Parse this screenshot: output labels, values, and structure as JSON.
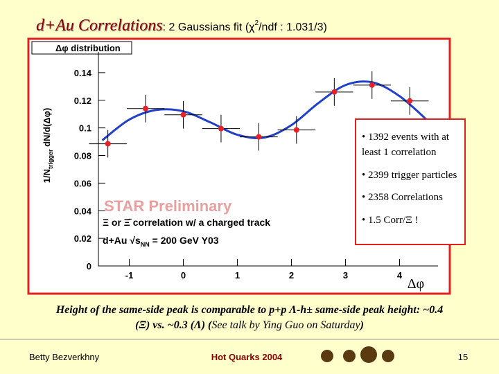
{
  "slide": {
    "title_main": "d+Au   Correlations",
    "title_note": ": 2 Gaussians fit (χ",
    "title_sup": "2",
    "title_end": "/ndf : 1.031/3)",
    "bullets": [
      "• 1392 events with at",
      "least 1 correlation",
      "• 2399 trigger particles",
      "• 2358 Correlations",
      "• 1.5  Corr/Ξ !"
    ],
    "caption_line1": "Height of the same-side peak is comparable to p+p Λ-h± same-side peak height: ~0.4",
    "caption_line2a": "(Ξ) vs. ~0.3 (Λ) (",
    "caption_line2b": "See talk by Ying Guo on Saturday",
    "caption_line2c": ")",
    "footer_author": "Betty Bezverkhny",
    "footer_conf": "Hot Quarks 2004",
    "footer_page": "15"
  },
  "chart_data": {
    "type": "scatter",
    "title": "Δφ distribution",
    "xlabel": "Δφ",
    "ylabel_a": "1/N",
    "ylabel_sub": "trigger",
    "ylabel_b": " dN/d(Δφ)",
    "annotations": [
      "STAR Preliminary",
      "Ξ or Ξ̄ correlation w/ a charged track"
    ],
    "energy_a": "d+Au ",
    "energy_b": "√s",
    "energy_sub": "NN",
    "energy_c": " = 200 GeV Y03",
    "x": [
      -1.396,
      -0.698,
      0,
      0.698,
      1.396,
      2.094,
      2.793,
      3.491,
      4.189
    ],
    "values": [
      0.0885,
      0.114,
      0.1095,
      0.0995,
      0.0935,
      0.0985,
      0.126,
      0.131,
      0.1195
    ],
    "errors": [
      0.01,
      0.01,
      0.01,
      0.01,
      0.01,
      0.01,
      0.01,
      0.01,
      0.01
    ],
    "xerr": 0.349,
    "color": "#e8202a",
    "fit": {
      "color": "#2040c8",
      "x": [
        -1.5,
        -1,
        -0.5,
        0,
        0.5,
        1,
        1.5,
        2,
        2.5,
        3,
        3.5,
        4,
        4.5
      ],
      "y": [
        0.091,
        0.106,
        0.113,
        0.112,
        0.104,
        0.095,
        0.093,
        0.102,
        0.118,
        0.131,
        0.133,
        0.123,
        0.106
      ]
    },
    "xlim": [
      -1.571,
      4.712
    ],
    "ylim": [
      0,
      0.155
    ],
    "xticks": [
      -1,
      0,
      1,
      2,
      3,
      4
    ],
    "yticks": [
      0,
      0.02,
      0.04,
      0.06,
      0.08,
      0.1,
      0.12,
      0.14
    ]
  }
}
